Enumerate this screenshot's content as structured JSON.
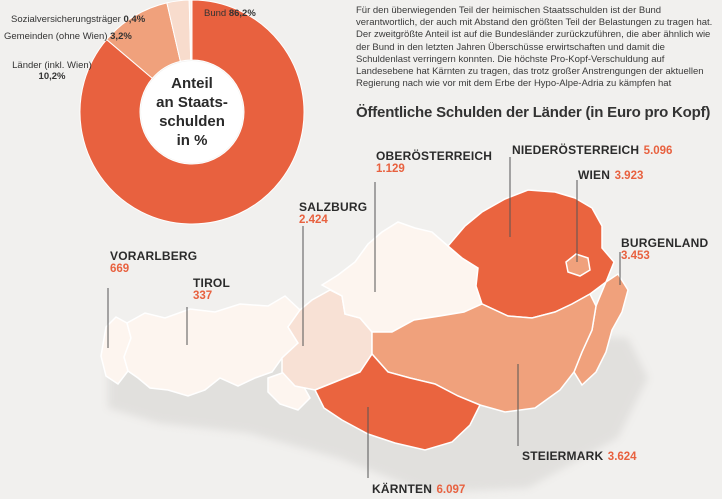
{
  "description": "Für den überwiegenden Teil der heimischen Staatsschulden ist der Bund verantwortlich, der auch mit Abstand den größten Teil der Belastungen zu tragen hat. Der zweitgrößte Anteil ist auf die Bundesländer zurückzuführen, die aber ähnlich wie der Bund in den letzten Jahren Überschüsse erwirtschaften und damit die Schuldenlast verringern konnten. Die höchste Pro-Kopf-Verschuldung auf Landesebene hat Kärnten zu tragen, das trotz großer Anstrengungen der aktuellen Regierung nach wie vor mit dem Erbe der Hypo-Alpe-Adria zu kämpfen hat",
  "colors": {
    "background": "#f1f0ee",
    "accent": "#e8613f",
    "map_high": "#ea643f",
    "map_mid": "#f0a17c",
    "map_low": "#f8e1d5",
    "map_lowest": "#fdf5ef"
  },
  "chart_data": [
    {
      "type": "pie",
      "title": "Anteil an Staats-schulden in %",
      "title_lines": [
        "Anteil",
        "an Staats-",
        "schulden",
        "in %"
      ],
      "slices": [
        {
          "label": "Bund",
          "value": 86.2,
          "value_text": "86,2%",
          "color": "#e8613f"
        },
        {
          "label": "Länder (inkl. Wien)",
          "value": 10.2,
          "value_text": "10,2%",
          "color": "#f0a17c"
        },
        {
          "label": "Gemeinden (ohne Wien)",
          "value": 3.2,
          "value_text": "3,2%",
          "color": "#f8dccd"
        },
        {
          "label": "Sozialversicherungsträger",
          "value": 0.4,
          "value_text": "0,4%",
          "color": "#fdf3ec"
        }
      ]
    },
    {
      "type": "map",
      "title": "Öffentliche Schulden der Länder (in Euro pro Kopf)",
      "unit": "Euro pro Kopf",
      "regions": [
        {
          "name": "VORARLBERG",
          "value": 669,
          "value_text": "669"
        },
        {
          "name": "TIROL",
          "value": 337,
          "value_text": "337"
        },
        {
          "name": "SALZBURG",
          "value": 2424,
          "value_text": "2.424"
        },
        {
          "name": "OBERÖSTERREICH",
          "value": 1129,
          "value_text": "1.129"
        },
        {
          "name": "NIEDERÖSTERREICH",
          "value": 5096,
          "value_text": "5.096"
        },
        {
          "name": "WIEN",
          "value": 3923,
          "value_text": "3.923"
        },
        {
          "name": "BURGENLAND",
          "value": 3453,
          "value_text": "3.453"
        },
        {
          "name": "STEIERMARK",
          "value": 3624,
          "value_text": "3.624"
        },
        {
          "name": "KÄRNTEN",
          "value": 6097,
          "value_text": "6.097"
        }
      ]
    }
  ]
}
